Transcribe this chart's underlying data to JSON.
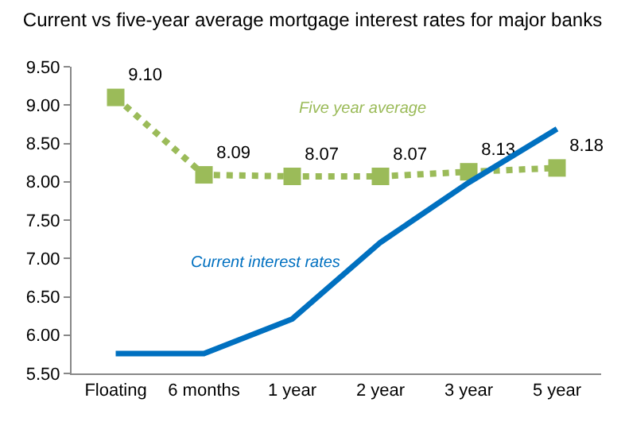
{
  "chart_data": {
    "type": "line",
    "title": "Current vs five-year average mortgage interest rates for major banks",
    "categories": [
      "Floating",
      "6 months",
      "1 year",
      "2 year",
      "3 year",
      "5 year"
    ],
    "series": [
      {
        "name": "Five year average",
        "color": "#9bbb59",
        "values": [
          9.1,
          8.09,
          8.07,
          8.07,
          8.13,
          8.18
        ],
        "value_labels": [
          "9.10",
          "8.09",
          "8.07",
          "8.07",
          "8.13",
          "8.18"
        ],
        "marker": "square",
        "line_style": "dotted"
      },
      {
        "name": "Current interest rates",
        "color": "#0070c0",
        "values": [
          5.76,
          5.76,
          6.21,
          7.21,
          7.99,
          8.69
        ],
        "marker": "none",
        "line_style": "solid"
      }
    ],
    "ylim": [
      5.5,
      9.5
    ],
    "yticks": [
      {
        "value": 5.5,
        "label": "5.50"
      },
      {
        "value": 6,
        "label": "6.00"
      },
      {
        "value": 6.5,
        "label": "6.50"
      },
      {
        "value": 7,
        "label": "7.00"
      },
      {
        "value": 7.5,
        "label": "7.50"
      },
      {
        "value": 8,
        "label": "8.00"
      },
      {
        "value": 8.5,
        "label": "8.50"
      },
      {
        "value": 9,
        "label": "9.00"
      },
      {
        "value": 9.5,
        "label": "9.50"
      }
    ],
    "grid": false,
    "legend": false
  }
}
